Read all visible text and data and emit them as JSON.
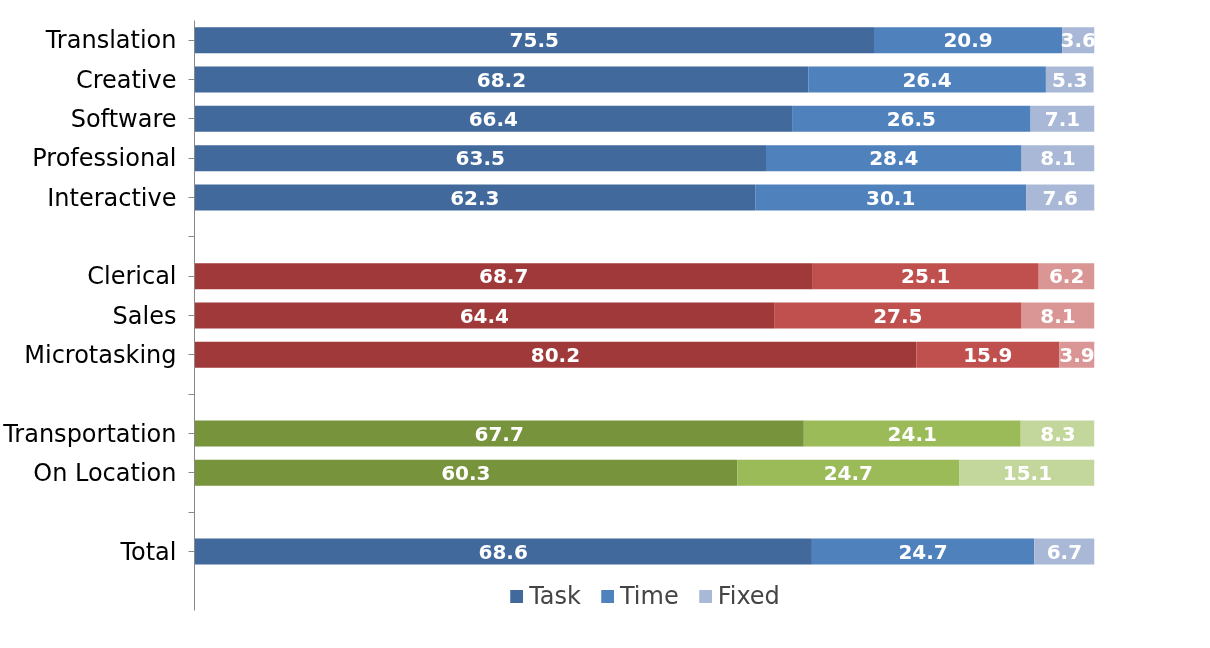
{
  "chart_data": {
    "type": "bar",
    "orientation": "horizontal",
    "stacked": true,
    "data_labels": true,
    "legend": "bottom",
    "grid": false,
    "tick_labels": "y",
    "xlim": [
      0,
      100
    ],
    "categories": [
      "Translation",
      "Creative",
      "Software",
      "Professional",
      "Interactive",
      null,
      "Clerical",
      "Sales",
      "Microtasking",
      null,
      "Transportation",
      "On Location",
      null,
      "Total"
    ],
    "series": [
      {
        "name": "Task",
        "color": "#41699c",
        "values": [
          75.5,
          68.2,
          66.4,
          63.5,
          62.3,
          null,
          68.7,
          64.4,
          80.2,
          null,
          67.7,
          60.3,
          null,
          68.6
        ],
        "colors": [
          "#41699c",
          "#41699c",
          "#41699c",
          "#41699c",
          "#41699c",
          null,
          "#a0393a",
          "#a0393a",
          "#a0393a",
          null,
          "#77933c",
          "#77933c",
          null,
          "#41699c"
        ]
      },
      {
        "name": "Time",
        "color": "#4f81bd",
        "values": [
          20.9,
          26.4,
          26.5,
          28.4,
          30.1,
          null,
          25.1,
          27.5,
          15.9,
          null,
          24.1,
          24.7,
          null,
          24.7
        ],
        "colors": [
          "#4f81bd",
          "#4f81bd",
          "#4f81bd",
          "#4f81bd",
          "#4f81bd",
          null,
          "#c0504d",
          "#c0504d",
          "#c0504d",
          null,
          "#9bbb59",
          "#9bbb59",
          null,
          "#4f81bd"
        ]
      },
      {
        "name": "Fixed",
        "color": "#a9b8d6",
        "values": [
          3.6,
          5.3,
          7.1,
          8.1,
          7.6,
          null,
          6.2,
          8.1,
          3.9,
          null,
          8.3,
          15.1,
          null,
          6.7
        ],
        "colors": [
          "#a9b8d6",
          "#a9b8d6",
          "#a9b8d6",
          "#a9b8d6",
          "#a9b8d6",
          null,
          "#d99694",
          "#d99694",
          "#d99694",
          null,
          "#c3d69b",
          "#c3d69b",
          null,
          "#a9b8d6"
        ]
      }
    ]
  }
}
